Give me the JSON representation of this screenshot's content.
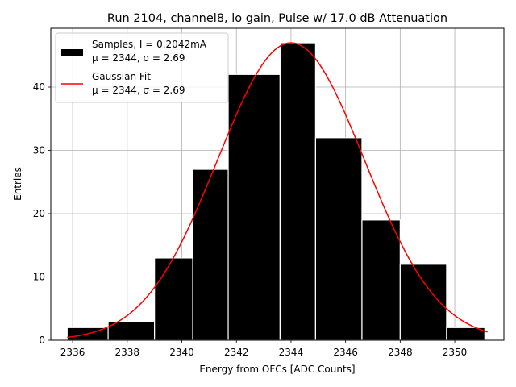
{
  "chart_data": {
    "type": "bar",
    "title": "Run 2104, channel8, lo gain, Pulse w/ 17.0 dB Attenuation",
    "xlabel": "Energy from OFCs [ADC Counts]",
    "ylabel": "Entries",
    "xlim": [
      2335.2,
      2351.8
    ],
    "ylim": [
      0,
      49.3
    ],
    "xticks": [
      "2336",
      "2338",
      "2340",
      "2342",
      "2344",
      "2346",
      "2348",
      "2350"
    ],
    "xtick_values": [
      2336,
      2338,
      2340,
      2342,
      2344,
      2346,
      2348,
      2350
    ],
    "yticks": [
      "0",
      "10",
      "20",
      "30",
      "40"
    ],
    "ytick_values": [
      0,
      10,
      20,
      30,
      40
    ],
    "grid": true,
    "legend_position": "top-left",
    "bins": [
      {
        "left": 2335.8,
        "right": 2337.3,
        "count": 2
      },
      {
        "left": 2337.3,
        "right": 2339.0,
        "count": 3
      },
      {
        "left": 2339.0,
        "right": 2340.4,
        "count": 13
      },
      {
        "left": 2340.4,
        "right": 2341.7,
        "count": 27
      },
      {
        "left": 2341.7,
        "right": 2343.6,
        "count": 42
      },
      {
        "left": 2343.6,
        "right": 2344.9,
        "count": 47
      },
      {
        "left": 2344.9,
        "right": 2346.6,
        "count": 32
      },
      {
        "left": 2346.6,
        "right": 2348.0,
        "count": 19
      },
      {
        "left": 2348.0,
        "right": 2349.7,
        "count": 12
      },
      {
        "left": 2349.7,
        "right": 2351.1,
        "count": 2
      }
    ],
    "series": [
      {
        "name": "Samples, I = 0.2042mA",
        "stats": "μ = 2344, σ = 2.69",
        "color": "#000000",
        "kind": "histogram"
      },
      {
        "name": "Gaussian Fit",
        "stats": "μ = 2344, σ = 2.69",
        "color": "#ff0000",
        "kind": "line",
        "mu": 2344.0,
        "sigma": 2.69,
        "amplitude": 47.0,
        "x_range": [
          2335.8,
          2351.2
        ]
      }
    ]
  }
}
